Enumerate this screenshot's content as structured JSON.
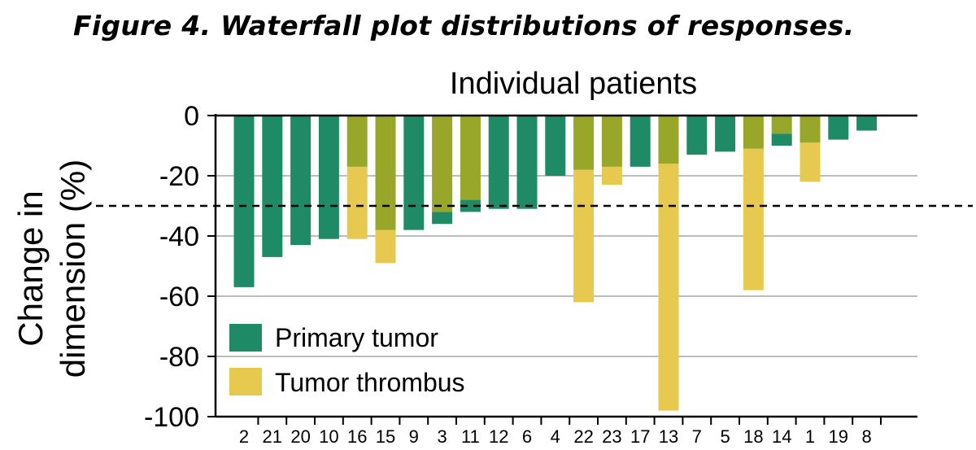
{
  "figure_title": "Figure 4. Waterfall plot distributions of  responses.",
  "colors": {
    "primary": "#1f8a66",
    "thrombus": "#e6c94e",
    "overlap": "#98a62a",
    "grid": "#bdbdbd",
    "threshold": "#000000"
  },
  "chart_data": {
    "type": "bar",
    "title": "Individual patients",
    "ylabel_lines": [
      "Change in",
      "dimension (%)"
    ],
    "xlabel": "",
    "ylim": [
      -100,
      0
    ],
    "yticks": [
      0,
      -20,
      -40,
      -60,
      -80,
      -100
    ],
    "ytick_labels": [
      "0",
      "-20",
      "-40",
      "-60",
      "-80",
      "-100"
    ],
    "grid": true,
    "threshold": -30,
    "legend_position": "bottom-left",
    "categories": [
      "2",
      "21",
      "20",
      "10",
      "16",
      "15",
      "9",
      "3",
      "11",
      "12",
      "6",
      "4",
      "22",
      "23",
      "17",
      "13",
      "7",
      "5",
      "18",
      "14",
      "1",
      "19",
      "8"
    ],
    "series": [
      {
        "name": "Primary tumor",
        "values": [
          -57,
          -47,
          -43,
          -41,
          -17,
          -38,
          -38,
          -36,
          -32,
          -31,
          -31,
          -20,
          -18,
          -17,
          -17,
          -16,
          -13,
          -12,
          -11,
          -10,
          -9,
          -8,
          -5
        ]
      },
      {
        "name": "Tumor thrombus",
        "values": [
          null,
          null,
          null,
          null,
          -41,
          -49,
          null,
          -32,
          -28,
          null,
          null,
          null,
          -62,
          -23,
          null,
          -98,
          null,
          null,
          -58,
          -6,
          -22,
          null,
          null
        ]
      }
    ]
  }
}
